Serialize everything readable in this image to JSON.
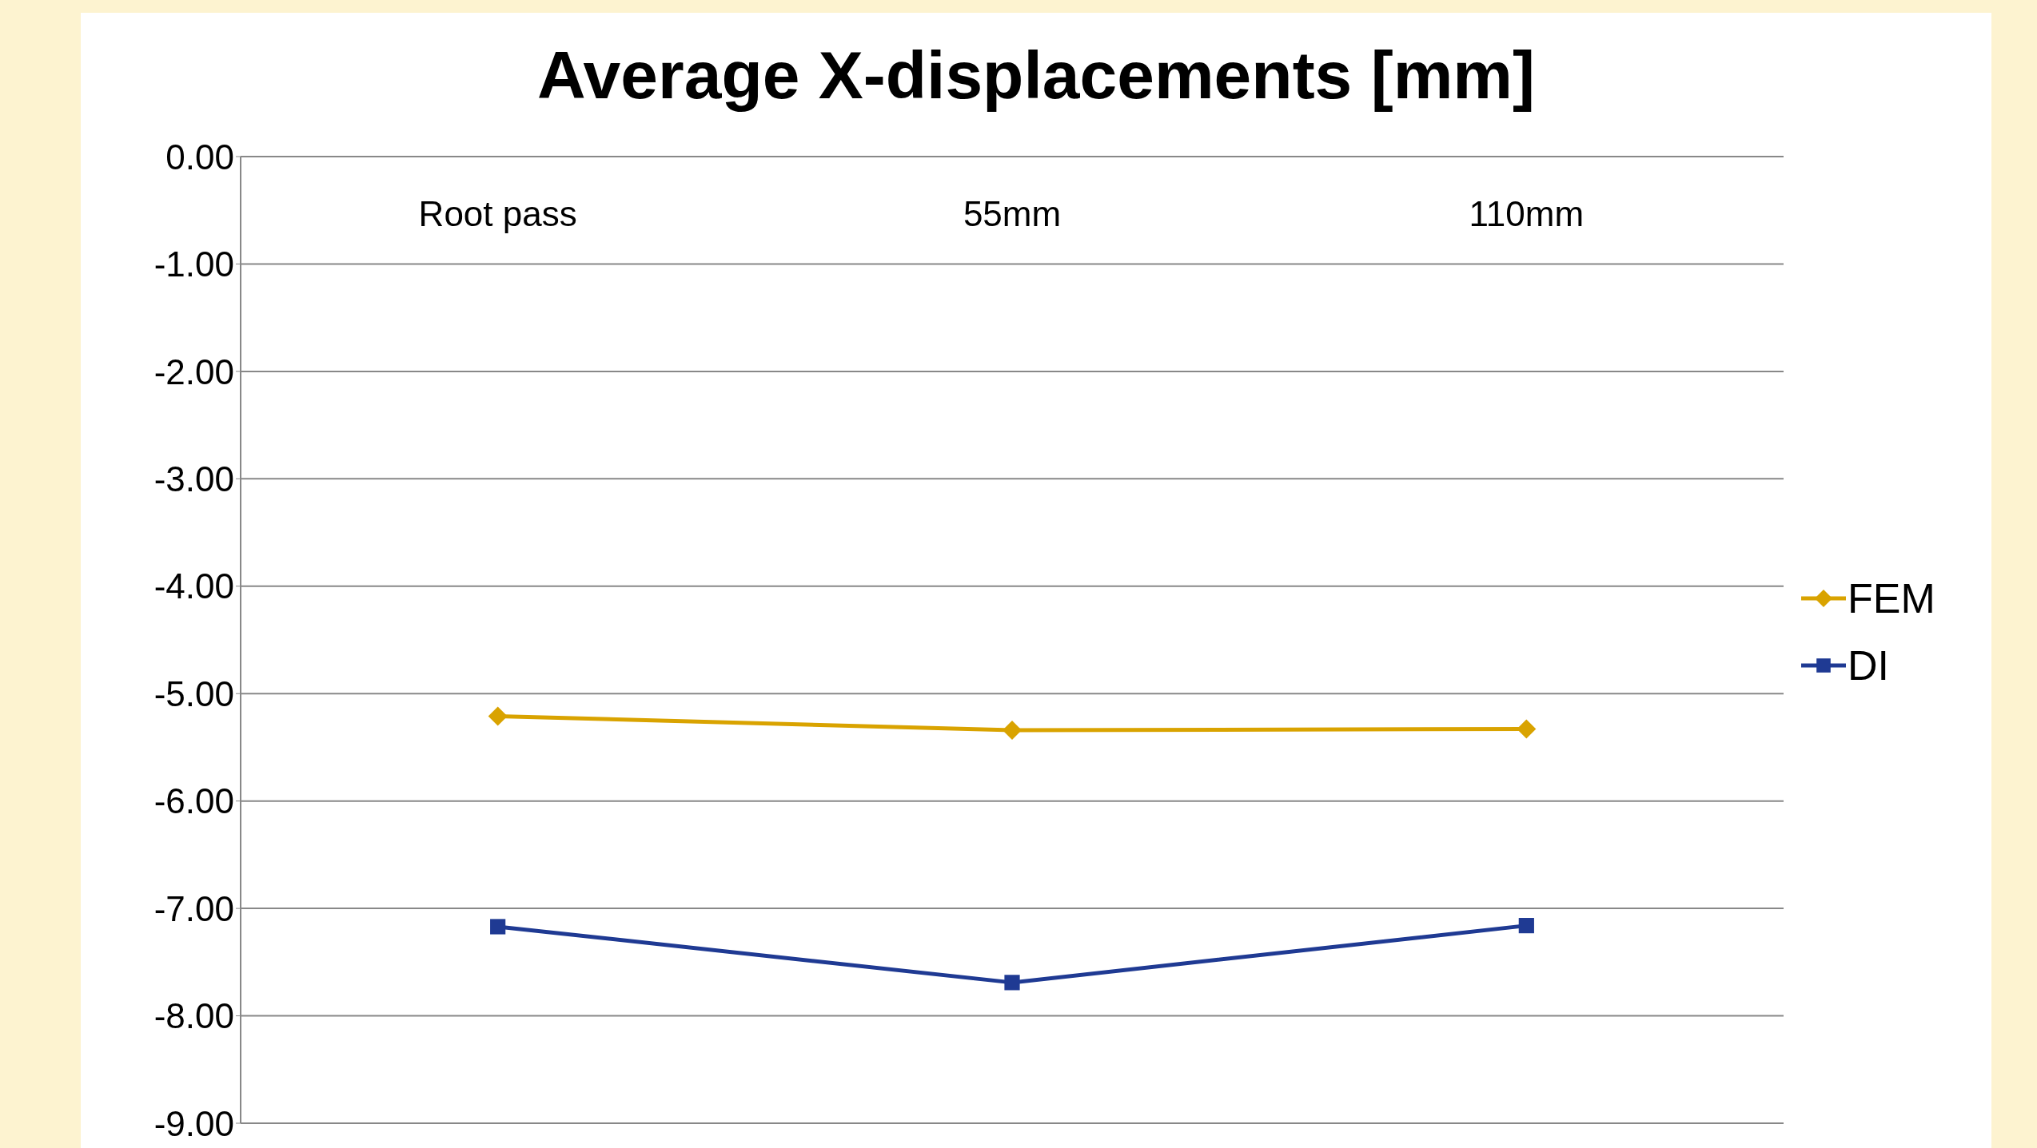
{
  "chart_data": {
    "type": "line",
    "title": "Average X-displacements [mm]",
    "categories": [
      "Root pass",
      "55mm",
      "110mm"
    ],
    "series": [
      {
        "name": "FEM",
        "color": "#d9a300",
        "values": [
          -5.21,
          -5.34,
          -5.33
        ],
        "marker": "diamond"
      },
      {
        "name": "DI",
        "color": "#1f3a93",
        "values": [
          -7.17,
          -7.69,
          -7.16
        ],
        "marker": "square"
      }
    ],
    "ylim": [
      -9,
      0
    ],
    "yticks": [
      {
        "value": 0,
        "label": "0.00"
      },
      {
        "value": -1,
        "label": "-1.00"
      },
      {
        "value": -2,
        "label": "-2.00"
      },
      {
        "value": -3,
        "label": "-3.00"
      },
      {
        "value": -4,
        "label": "-4.00"
      },
      {
        "value": -5,
        "label": "-5.00"
      },
      {
        "value": -6,
        "label": "-6.00"
      },
      {
        "value": -7,
        "label": "-7.00"
      },
      {
        "value": -8,
        "label": "-8.00"
      },
      {
        "value": -9,
        "label": "-9.00"
      }
    ],
    "grid": "y",
    "legend": "right",
    "line_style": "solid"
  }
}
